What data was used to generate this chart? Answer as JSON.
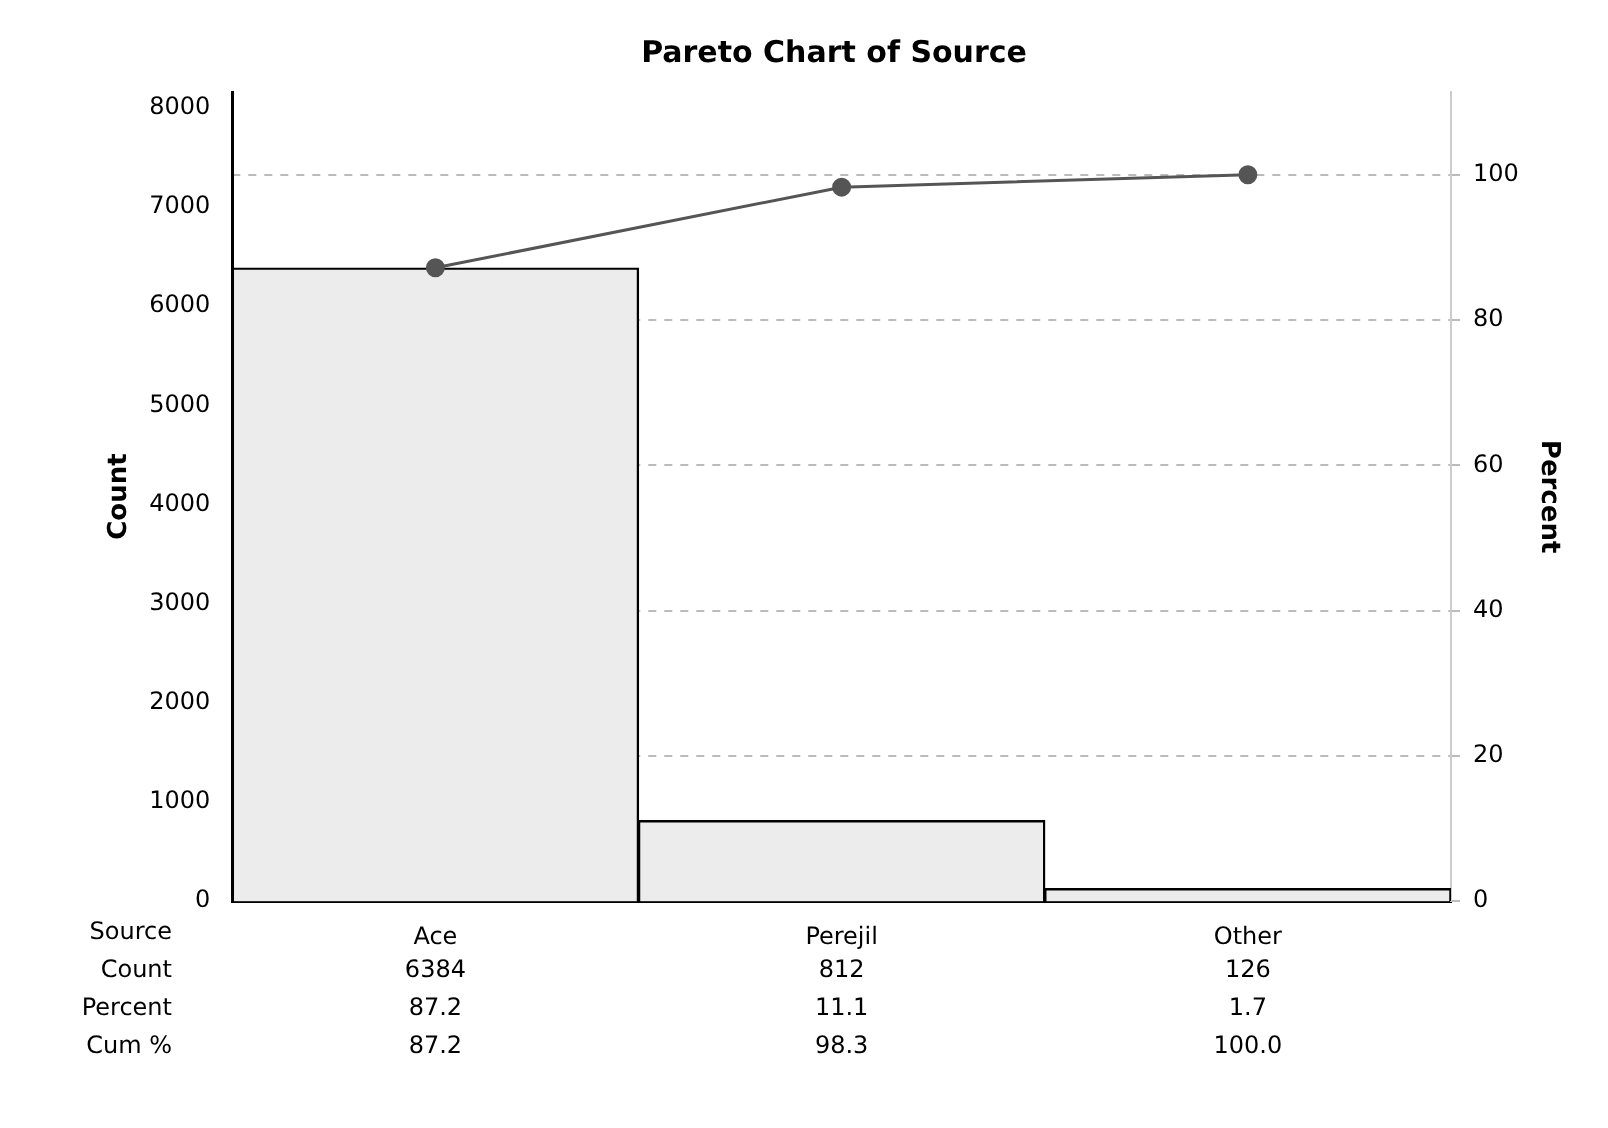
{
  "chart_data": {
    "type": "bar",
    "title": "Pareto Chart of Source",
    "xlabel": "Source",
    "ylabel": "Count",
    "y2label": "Percent",
    "categories": [
      "Ace",
      "Perejil",
      "Other"
    ],
    "series": [
      {
        "color": "#ececec",
        "values": [
          6384,
          812,
          126
        ],
        "value_labels": [
          "6384",
          "812",
          "126"
        ]
      },
      {
        "type": "line",
        "axis": "y2",
        "color": "#555555",
        "marker": "circle",
        "line_style": "solid",
        "values": [
          87.2,
          98.3,
          100.0
        ],
        "value_labels": [
          "87.2",
          "98.3",
          "100.0"
        ]
      }
    ],
    "annotations": [
      "Count",
      "Percent",
      "Cum %",
      "87.2",
      "11.1",
      "1.7"
    ],
    "ylim": [
      0,
      8160
    ],
    "yticks": [
      0,
      1000,
      2000,
      3000,
      4000,
      5000,
      6000,
      7000,
      8000
    ],
    "y2lim": [
      0,
      111.4
    ],
    "y2ticks": [
      0,
      20,
      40,
      60,
      80,
      100
    ],
    "grid": "y",
    "legend": false
  }
}
